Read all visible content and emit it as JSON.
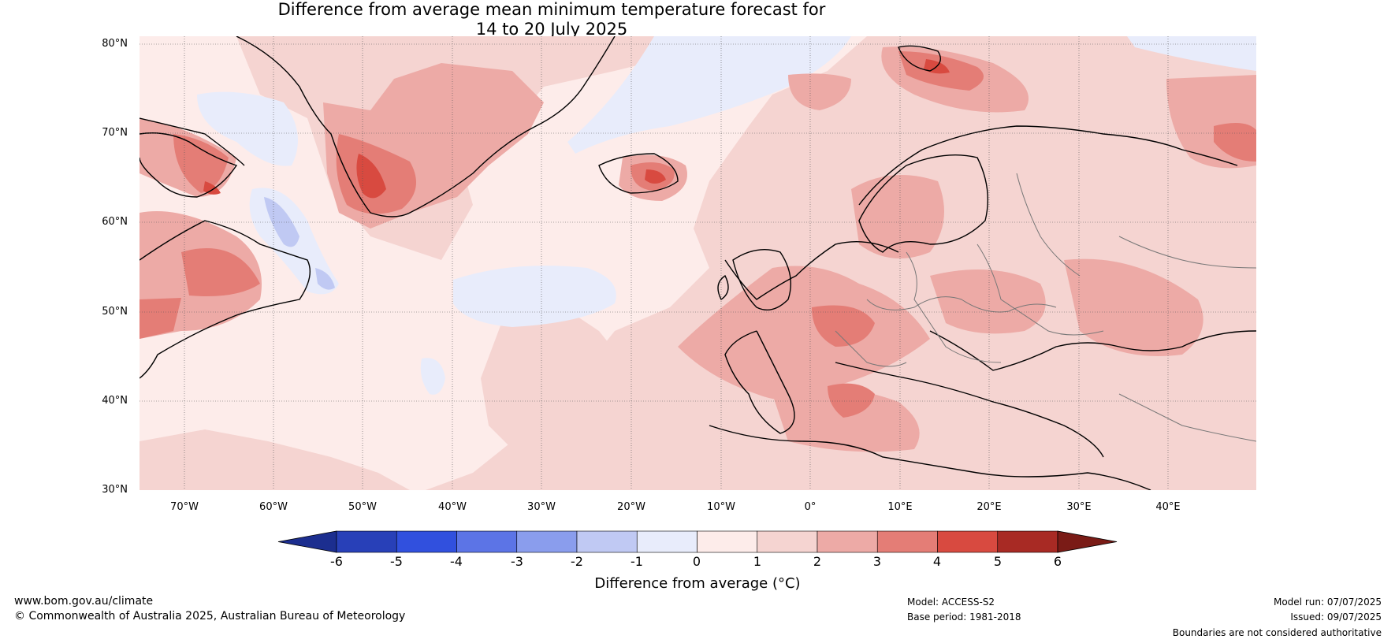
{
  "title": {
    "line1": "Difference from average mean minimum temperature forecast for",
    "line2": "14 to 20 July 2025"
  },
  "map": {
    "lat_labels": [
      "80°N",
      "70°N",
      "60°N",
      "50°N",
      "40°N",
      "30°N"
    ],
    "lon_labels": [
      "70°W",
      "60°W",
      "50°W",
      "40°W",
      "30°W",
      "20°W",
      "10°W",
      "0°",
      "10°E",
      "20°E",
      "30°E",
      "40°E"
    ]
  },
  "colorbar": {
    "ticks": [
      "-6",
      "-5",
      "-4",
      "-3",
      "-2",
      "-1",
      "0",
      "1",
      "2",
      "3",
      "4",
      "5",
      "6"
    ],
    "colors": [
      "#1c2e8f",
      "#2840b8",
      "#3150de",
      "#5c74e6",
      "#8a9ded",
      "#c0c9f3",
      "#e8ecfb",
      "#fdecea",
      "#f5d4d1",
      "#edaaa6",
      "#e47d76",
      "#d84a40",
      "#a82a24",
      "#7a1b16"
    ],
    "label": "Difference from average (°C)"
  },
  "footer": {
    "website": "www.bom.gov.au/climate",
    "copyright": "© Commonwealth of Australia 2025, Australian Bureau of Meteorology",
    "model": "Model: ACCESS-S2",
    "base_period": "Base period: 1981-2018",
    "model_run": "Model run: 07/07/2025",
    "issued": "Issued: 09/07/2025",
    "disclaimer": "Boundaries are not considered authoritative"
  }
}
